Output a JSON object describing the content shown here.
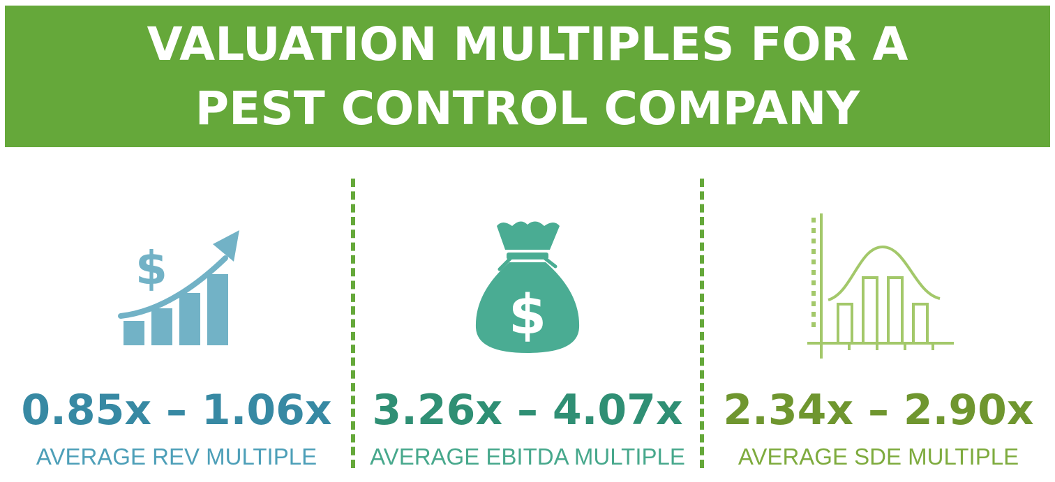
{
  "header": {
    "title_line1": "VALUATION MULTIPLES FOR A",
    "title_line2": "PEST CONTROL COMPANY"
  },
  "colors": {
    "banner": "#65a83a",
    "rev": "#3789a3",
    "ebitda": "#2f8f74",
    "sde": "#6f962f"
  },
  "metrics": [
    {
      "icon": "revenue-growth-chart-icon",
      "value": "0.85x – 1.06x",
      "label": "AVERAGE REV MULTIPLE"
    },
    {
      "icon": "money-bag-icon",
      "value": "3.26x – 4.07x",
      "label": "AVERAGE EBITDA MULTIPLE"
    },
    {
      "icon": "bell-curve-histogram-icon",
      "value": "2.34x – 2.90x",
      "label": "AVERAGE SDE MULTIPLE"
    }
  ],
  "icon_glyphs": {
    "dollar": "$"
  }
}
